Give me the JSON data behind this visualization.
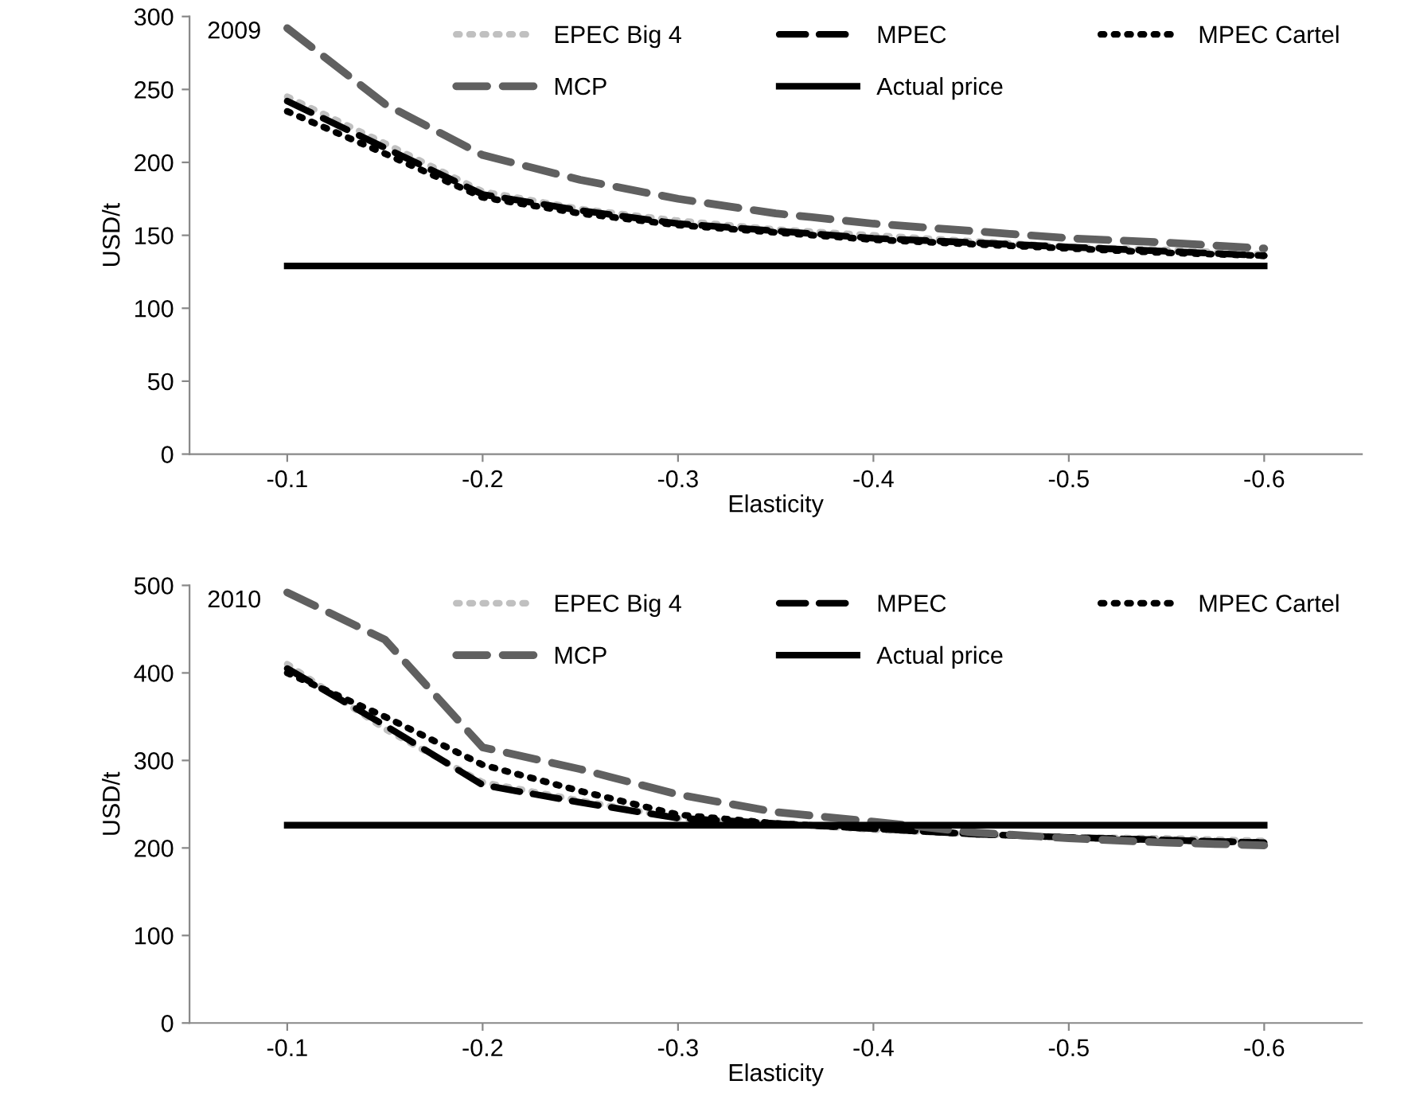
{
  "chart_data": [
    {
      "type": "line",
      "title": "2009",
      "xlabel": "Elasticity",
      "ylabel": "USD/t",
      "x": [
        -0.1,
        -0.15,
        -0.2,
        -0.25,
        -0.3,
        -0.35,
        -0.4,
        -0.45,
        -0.5,
        -0.55,
        -0.6
      ],
      "xlim": [
        -0.05,
        -0.65
      ],
      "xticks": [
        -0.1,
        -0.2,
        -0.3,
        -0.4,
        -0.5,
        -0.6
      ],
      "ylim": [
        0,
        300
      ],
      "yticks": [
        0,
        50,
        100,
        150,
        200,
        250,
        300
      ],
      "grid": false,
      "legend": "top right",
      "marker": "none",
      "series": [
        {
          "name": "EPEC Big 4",
          "color": "#c0c0c0",
          "line_style": "dotted",
          "values": [
            245,
            213,
            180,
            168,
            160,
            154,
            150,
            146,
            142,
            140,
            137
          ]
        },
        {
          "name": "MPEC",
          "color": "#000000",
          "line_style": "dashed",
          "values": [
            242,
            210,
            178,
            167,
            158,
            153,
            148,
            145,
            142,
            139,
            136
          ]
        },
        {
          "name": "MPEC Cartel",
          "color": "#000000",
          "line_style": "dotted",
          "values": [
            235,
            206,
            176,
            165,
            157,
            152,
            147,
            144,
            141,
            138,
            136
          ]
        },
        {
          "name": "MCP",
          "color": "#606060",
          "line_style": "dashed",
          "values": [
            292,
            240,
            205,
            188,
            175,
            165,
            158,
            153,
            148,
            145,
            141
          ]
        },
        {
          "name": "Actual price",
          "color": "#000000",
          "line_style": "solid",
          "values": [
            129,
            129,
            129,
            129,
            129,
            129,
            129,
            129,
            129,
            129,
            129
          ]
        }
      ]
    },
    {
      "type": "line",
      "title": "2010",
      "xlabel": "Elasticity",
      "ylabel": "USD/t",
      "x": [
        -0.1,
        -0.15,
        -0.2,
        -0.25,
        -0.3,
        -0.35,
        -0.4,
        -0.45,
        -0.5,
        -0.55,
        -0.6
      ],
      "xlim": [
        -0.05,
        -0.65
      ],
      "xticks": [
        -0.1,
        -0.2,
        -0.3,
        -0.4,
        -0.5,
        -0.6
      ],
      "ylim": [
        0,
        500
      ],
      "yticks": [
        0,
        100,
        200,
        300,
        400,
        500
      ],
      "grid": false,
      "legend": "top right",
      "marker": "none",
      "series": [
        {
          "name": "EPEC Big 4",
          "color": "#c0c0c0",
          "line_style": "dotted",
          "values": [
            410,
            336,
            275,
            254,
            234,
            228,
            221,
            216,
            212,
            211,
            208
          ]
        },
        {
          "name": "MPEC",
          "color": "#000000",
          "line_style": "dashed",
          "values": [
            405,
            340,
            272,
            252,
            234,
            228,
            222,
            216,
            212,
            209,
            206
          ]
        },
        {
          "name": "MPEC Cartel",
          "color": "#000000",
          "line_style": "dotted",
          "values": [
            400,
            350,
            295,
            265,
            238,
            228,
            222,
            216,
            212,
            209,
            206
          ]
        },
        {
          "name": "MCP",
          "color": "#606060",
          "line_style": "dashed",
          "values": [
            492,
            438,
            315,
            290,
            261,
            241,
            230,
            218,
            211,
            206,
            203
          ]
        },
        {
          "name": "Actual price",
          "color": "#000000",
          "line_style": "solid",
          "values": [
            226,
            226,
            226,
            226,
            226,
            226,
            226,
            226,
            226,
            226,
            226
          ]
        }
      ]
    }
  ]
}
